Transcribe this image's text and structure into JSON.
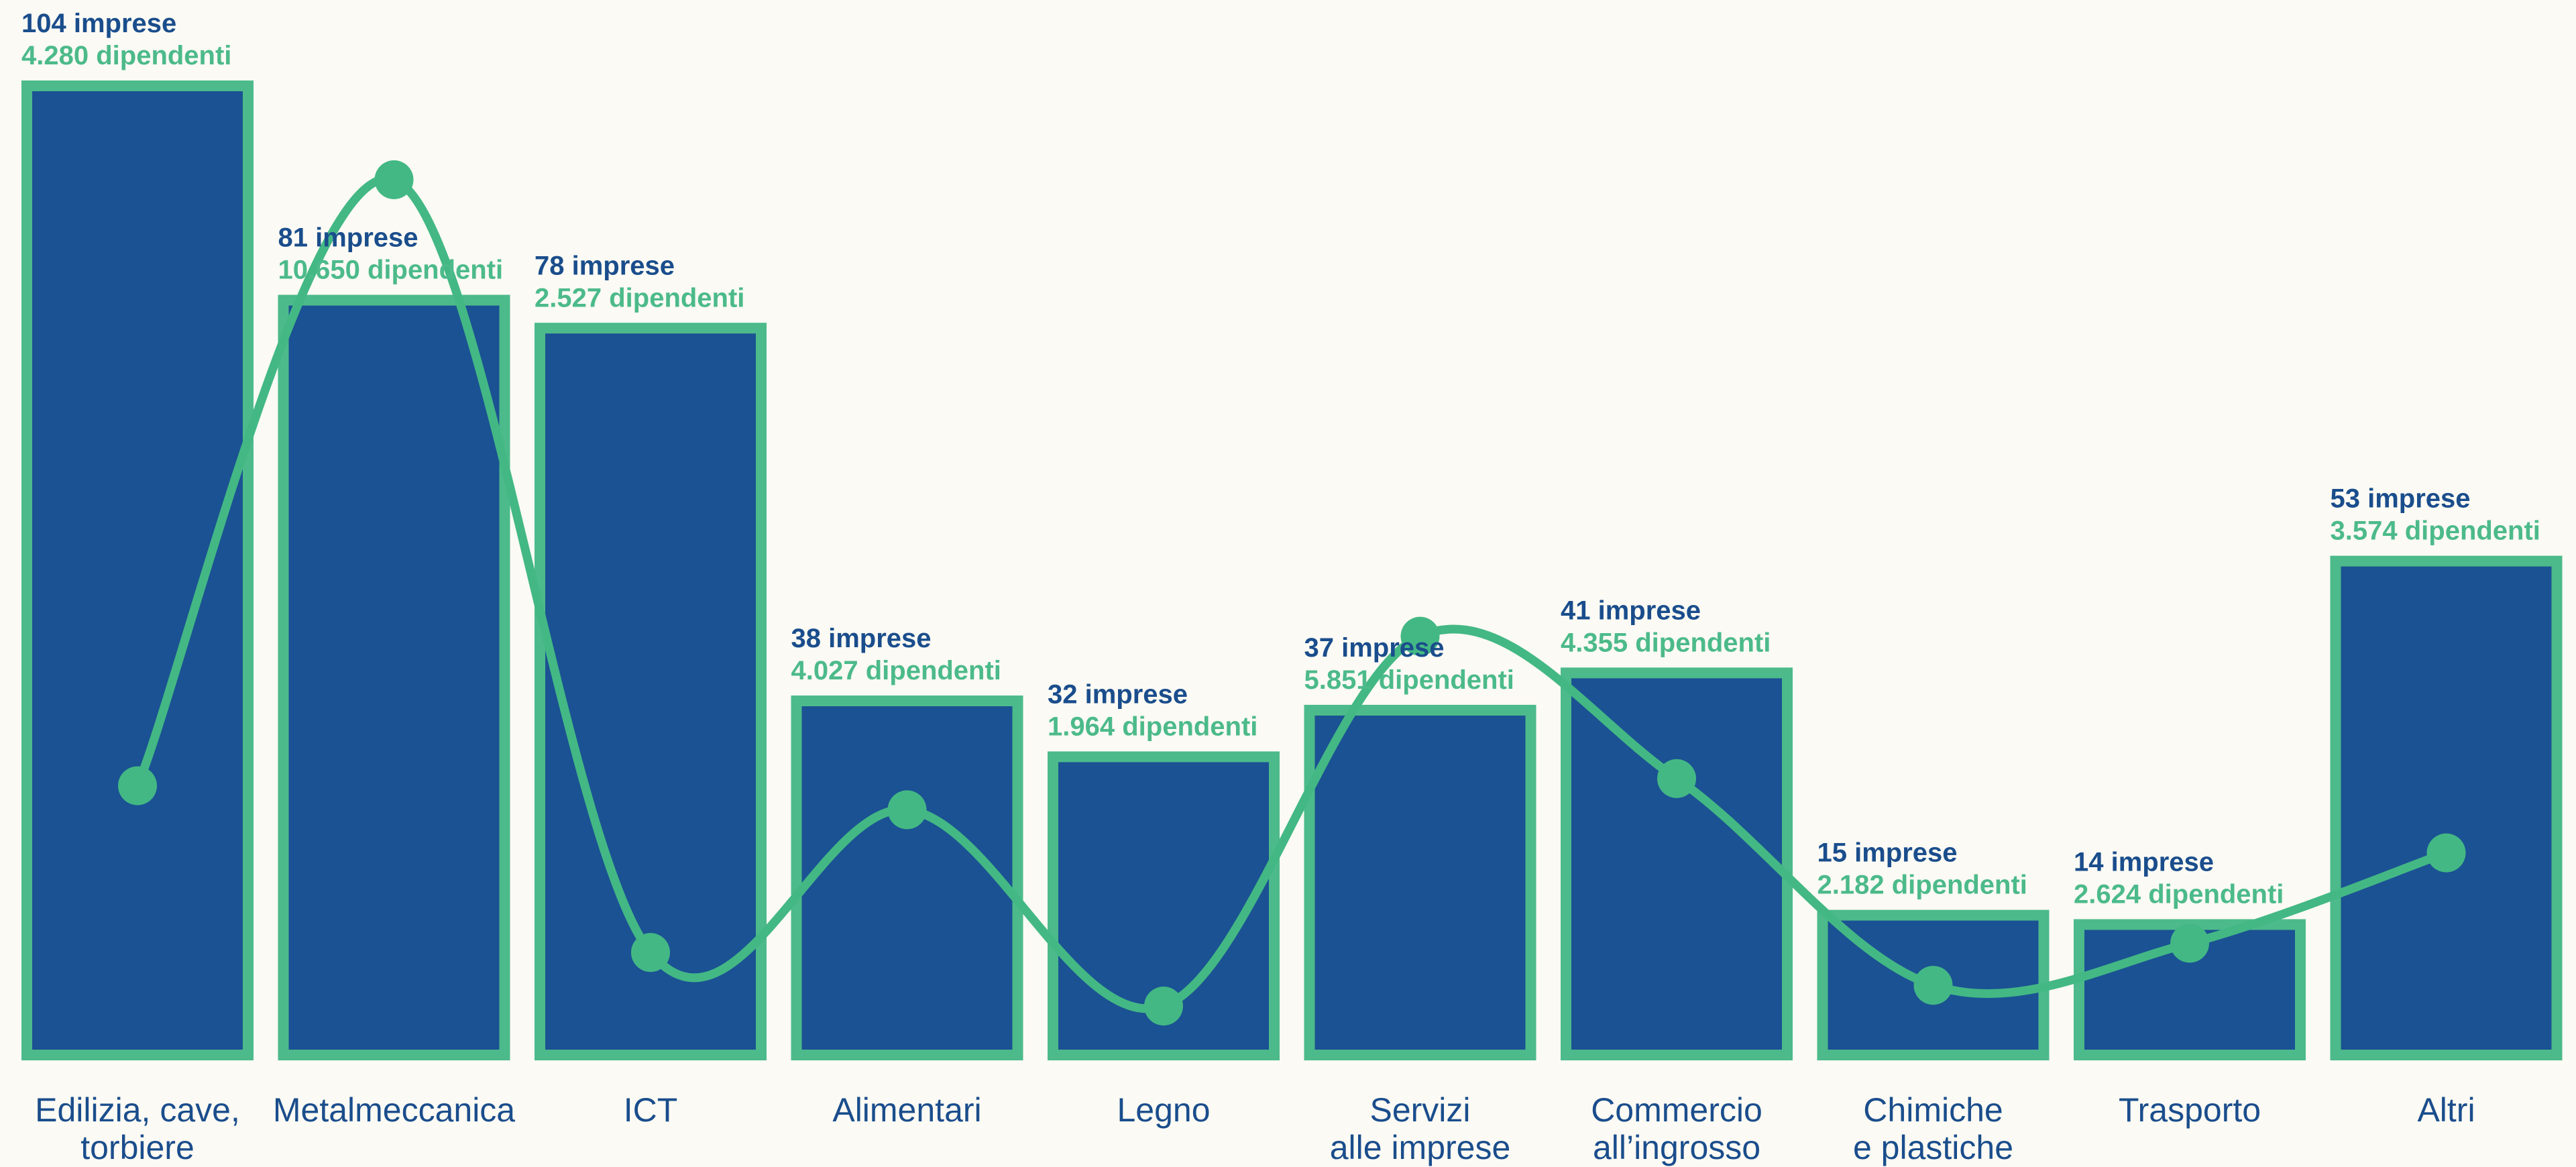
{
  "chart_data": {
    "type": "bar",
    "title": "",
    "xlabel": "",
    "ylabel": "",
    "categories": [
      [
        "Edilizia, cave,",
        "torbiere"
      ],
      [
        "Metalmeccanica"
      ],
      [
        "ICT"
      ],
      [
        "Alimentari"
      ],
      [
        "Legno"
      ],
      [
        "Servizi",
        "alle imprese"
      ],
      [
        "Commercio",
        "all’ingrosso"
      ],
      [
        "Chimiche",
        "e plastiche"
      ],
      [
        "Trasporto"
      ],
      [
        "Altri"
      ]
    ],
    "series": [
      {
        "type": "bar",
        "values": [
          104,
          81,
          78,
          38,
          32,
          37,
          41,
          15,
          14,
          53
        ],
        "labels": [
          "104 imprese",
          "81 imprese",
          "78 imprese",
          "38 imprese",
          "32 imprese",
          "37 imprese",
          "41 imprese",
          "15 imprese",
          "14 imprese",
          "53 imprese"
        ]
      },
      {
        "type": "line",
        "values": [
          4280,
          10650,
          2527,
          4027,
          1964,
          5851,
          4355,
          2182,
          2624,
          3574
        ],
        "labels": [
          "4.280 dipendenti",
          "10.650 dipendenti",
          "2.527 dipendenti",
          "4.027 dipendenti",
          "1.964 dipendenti",
          "5.851 dipendenti",
          "4.355 dipendenti",
          "2.182 dipendenti",
          "2.624 dipendenti",
          "3.574 dipendenti"
        ]
      }
    ],
    "colors": {
      "bar_fill": "#1b5293",
      "bar_border": "#4cba8a",
      "line": "#43b884",
      "imprese_text": "#1a4d8c",
      "dipendenti_text": "#4cba8a",
      "category_text": "#1a4d8c",
      "background": "#fbfaf4"
    },
    "grid": false,
    "legend": "none"
  }
}
